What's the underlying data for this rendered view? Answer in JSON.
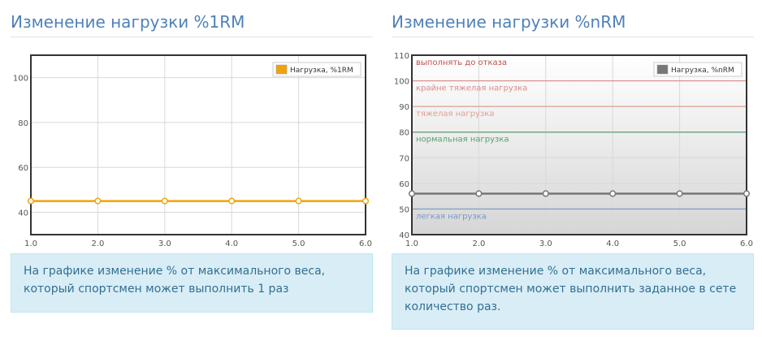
{
  "left": {
    "title": "Изменение нагрузки %1RM",
    "note": "На графике изменение % от максимального веса, который спортсмен может выполнить 1 раз"
  },
  "right": {
    "title": "Изменение нагрузки %nRM",
    "note": "На графике изменение % от максимального веса, который спортсмен может выполнить заданное в сете количество раз."
  },
  "chart_data": [
    {
      "type": "line",
      "x": [
        1.0,
        2.0,
        3.0,
        4.0,
        5.0,
        6.0
      ],
      "x_ticks": [
        "1.0",
        "2.0",
        "3.0",
        "4.0",
        "5.0",
        "6.0"
      ],
      "y_ticks": [
        "40",
        "60",
        "80",
        "100"
      ],
      "series": [
        {
          "name": "Нагрузка, %1RM",
          "values": [
            45,
            45,
            45,
            45,
            45,
            45
          ],
          "color": "#f0a30a"
        }
      ],
      "xlim": [
        1.0,
        6.0
      ],
      "ylim": [
        30,
        110
      ],
      "grid": true,
      "legend_position": "top-right",
      "background": "#ffffff"
    },
    {
      "type": "line",
      "x": [
        1.0,
        2.0,
        3.0,
        4.0,
        5.0,
        6.0
      ],
      "x_ticks": [
        "1.0",
        "2.0",
        "3.0",
        "4.0",
        "5.0",
        "6.0"
      ],
      "y_ticks": [
        "40",
        "50",
        "60",
        "70",
        "80",
        "90",
        "100",
        "110"
      ],
      "series": [
        {
          "name": "Нагрузка, %nRM",
          "values": [
            56,
            56,
            56,
            56,
            56,
            56
          ],
          "color": "#777777"
        }
      ],
      "xlim": [
        1.0,
        6.0
      ],
      "ylim": [
        40,
        110
      ],
      "grid": true,
      "legend_position": "top-right",
      "background": "gradient",
      "zones": [
        {
          "label": "выполнять до отказа",
          "y": 110,
          "color": "#c0504d"
        },
        {
          "label": "крайне тяжелая нагрузка",
          "y": 100,
          "color": "#d98c8a"
        },
        {
          "label": "тяжелая нагрузка",
          "y": 90,
          "color": "#e0a090"
        },
        {
          "label": "нормальная нагрузка",
          "y": 80,
          "color": "#5a9e6f"
        },
        {
          "label": "легкая нагрузка",
          "y": 50,
          "color": "#7a97c4"
        }
      ]
    }
  ]
}
